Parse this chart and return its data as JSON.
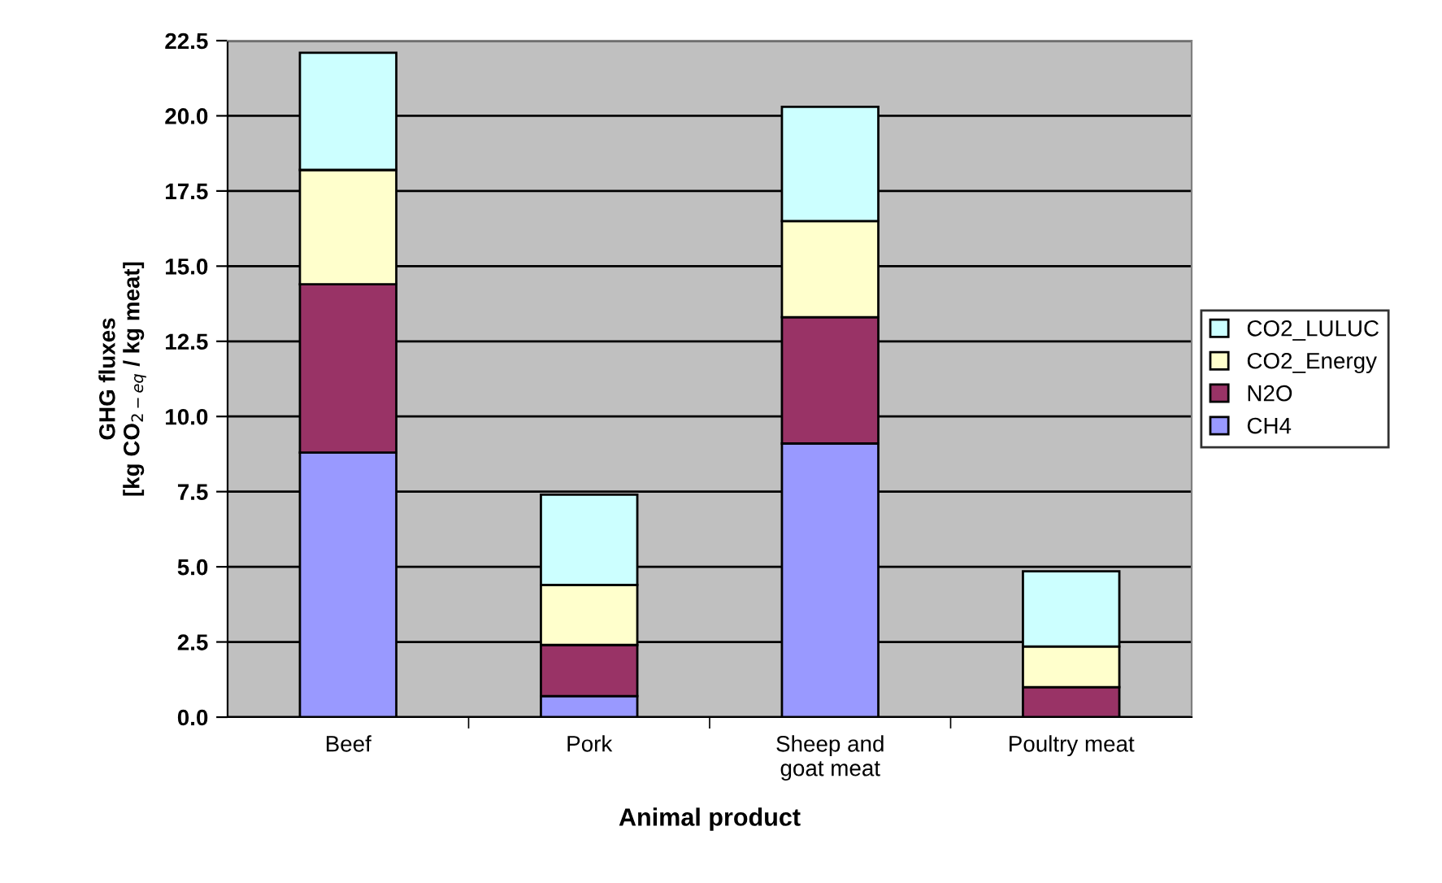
{
  "chart_data": {
    "type": "bar",
    "stacked": true,
    "xlabel": "Animal product",
    "ylabel": "GHG fluxes\n[kg CO$_{2−eq}$ / kg meat]",
    "categories": [
      "Beef",
      "Pork",
      "Sheep and\ngoat meat",
      "Poultry meat"
    ],
    "series": [
      {
        "name": "CH4",
        "color": "#9999ff",
        "values": [
          8.8,
          0.7,
          9.1,
          0
        ]
      },
      {
        "name": "N2O",
        "color": "#993366",
        "values": [
          5.6,
          1.7,
          4.2,
          1.0
        ]
      },
      {
        "name": "CO2_Energy",
        "color": "#ffffcc",
        "values": [
          3.8,
          2.0,
          3.2,
          1.35
        ]
      },
      {
        "name": "CO2_LULUC",
        "color": "#ccffff",
        "values": [
          3.9,
          3.0,
          3.8,
          2.5
        ]
      }
    ],
    "ylim": [
      0,
      22.5
    ],
    "yticks": [
      {
        "value": 0,
        "label": "0.0"
      },
      {
        "value": 2.5,
        "label": "2.5"
      },
      {
        "value": 5,
        "label": "5.0"
      },
      {
        "value": 7.5,
        "label": "7.5"
      },
      {
        "value": 10,
        "label": "10.0"
      },
      {
        "value": 12.5,
        "label": "12.5"
      },
      {
        "value": 15,
        "label": "15.0"
      },
      {
        "value": 17.5,
        "label": "17.5"
      },
      {
        "value": 20,
        "label": "20.0"
      },
      {
        "value": 22.5,
        "label": "22.5"
      }
    ],
    "grid": "y",
    "legend": "right"
  }
}
